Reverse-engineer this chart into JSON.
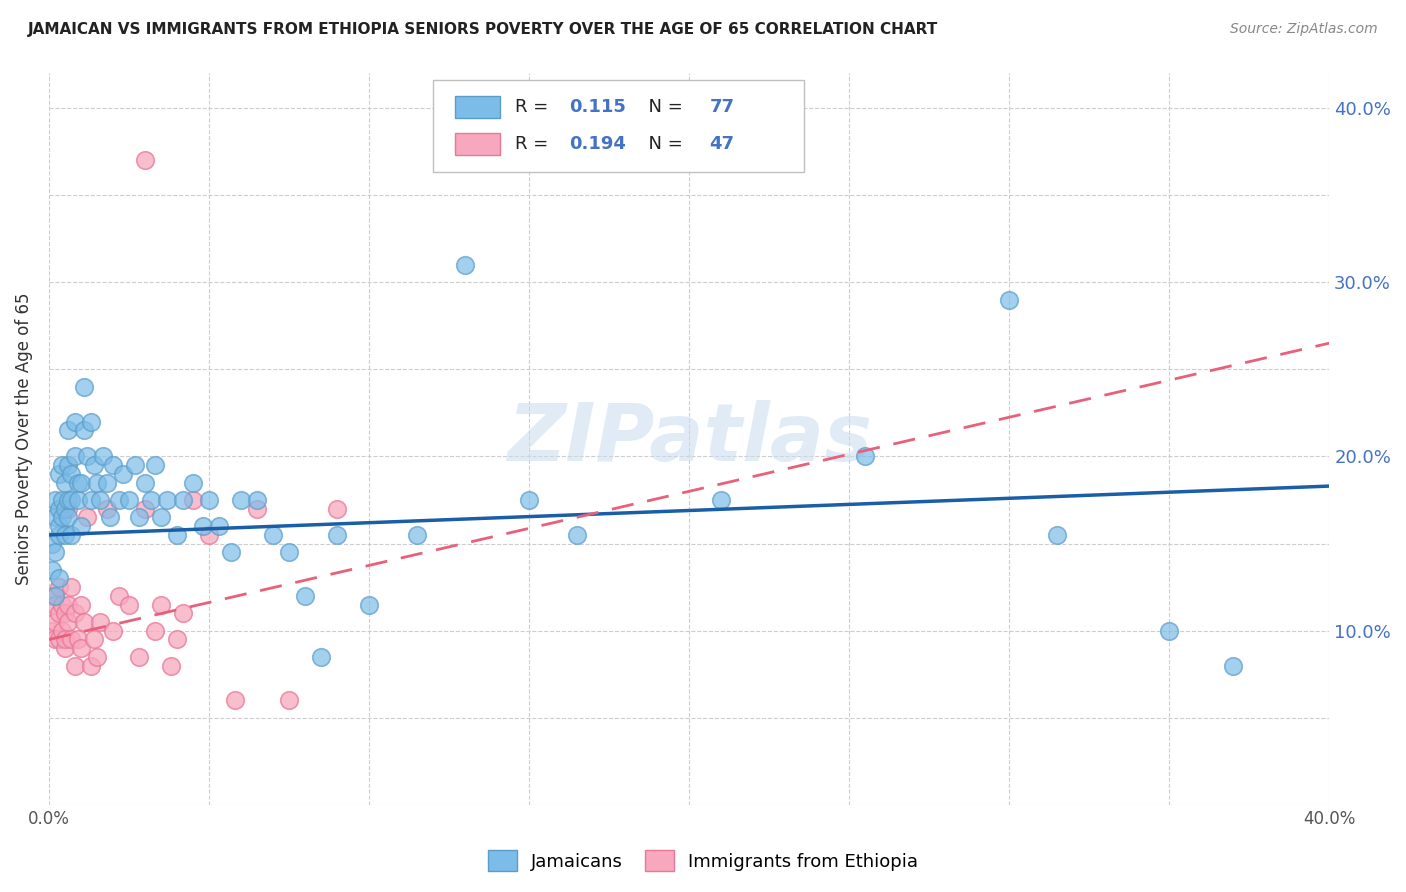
{
  "title": "JAMAICAN VS IMMIGRANTS FROM ETHIOPIA SENIORS POVERTY OVER THE AGE OF 65 CORRELATION CHART",
  "source": "Source: ZipAtlas.com",
  "ylabel": "Seniors Poverty Over the Age of 65",
  "xlim": [
    0.0,
    0.4
  ],
  "ylim": [
    0.0,
    0.42
  ],
  "x_ticks": [
    0.0,
    0.05,
    0.1,
    0.15,
    0.2,
    0.25,
    0.3,
    0.35,
    0.4
  ],
  "y_ticks": [
    0.0,
    0.1,
    0.2,
    0.3,
    0.4
  ],
  "y_ticks_grid": [
    0.0,
    0.05,
    0.1,
    0.15,
    0.2,
    0.25,
    0.3,
    0.35,
    0.4
  ],
  "jamaicans_color": "#7BBCE8",
  "jamaicans_edge_color": "#5B9DC8",
  "ethiopia_color": "#F8A8BE",
  "ethiopia_edge_color": "#E87898",
  "jamaicans_line_color": "#1A5EA8",
  "ethiopia_line_color": "#E8607A",
  "R_jamaicans": 0.115,
  "N_jamaicans": 77,
  "R_ethiopia": 0.194,
  "N_ethiopia": 47,
  "watermark": "ZIPatlas",
  "jam_line_y0": 0.155,
  "jam_line_y1": 0.183,
  "eth_line_y0": 0.095,
  "eth_line_y1": 0.265
}
